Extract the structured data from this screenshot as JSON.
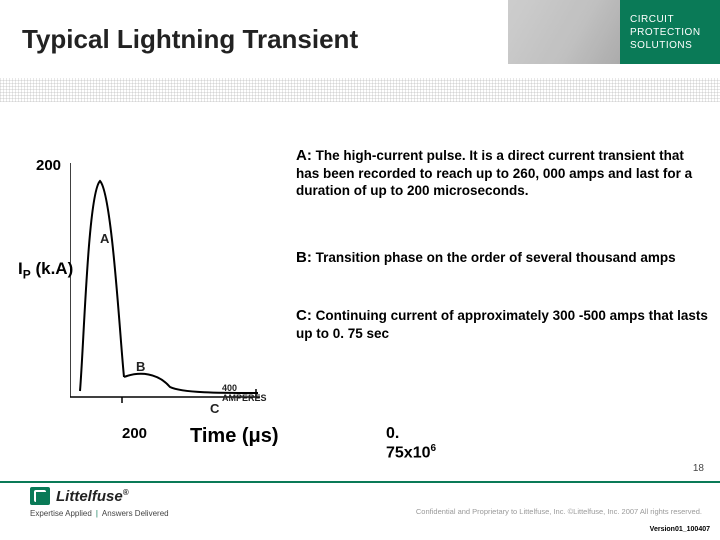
{
  "title": "Typical Lightning Transient",
  "brand": {
    "line1": "CIRCUIT",
    "line2": "PROTECTION",
    "line3": "SOLUTIONS"
  },
  "chart": {
    "ylabel_html": "I<sub>P</sub> (k.A)",
    "ytick": "200",
    "xtick1": "200",
    "xlabel_html": "Time (<span class=\"unit\">μs</span>)",
    "xtick2_html": "0. 75x10<sup>6</sup>",
    "labels": {
      "A": "A",
      "B": "B",
      "C": "C",
      "amp": "400 AMPERES"
    }
  },
  "desc": {
    "A": {
      "tag": "A:",
      "text": "The high-current pulse. It is a direct current transient that has been recorded to reach up to 260, 000 amps and last for a duration of up to 200 microseconds."
    },
    "B": {
      "tag": "B:",
      "text": "Transition phase on the order of several thousand amps"
    },
    "C": {
      "tag": "C:",
      "text": "Continuing current of approximately 300 -500 amps that lasts up to 0. 75 sec"
    }
  },
  "footer": {
    "logoname": "Littelfuse",
    "tagline1": "Expertise Applied",
    "tagline2": "Answers Delivered",
    "confidential": "Confidential and Proprietary to Littelfuse, Inc.  ©Littelfuse, Inc. 2007 All rights reserved.",
    "pagenum": "18",
    "version": "Version01_100407"
  },
  "colors": {
    "brand": "#0a7a57",
    "text": "#222222"
  }
}
